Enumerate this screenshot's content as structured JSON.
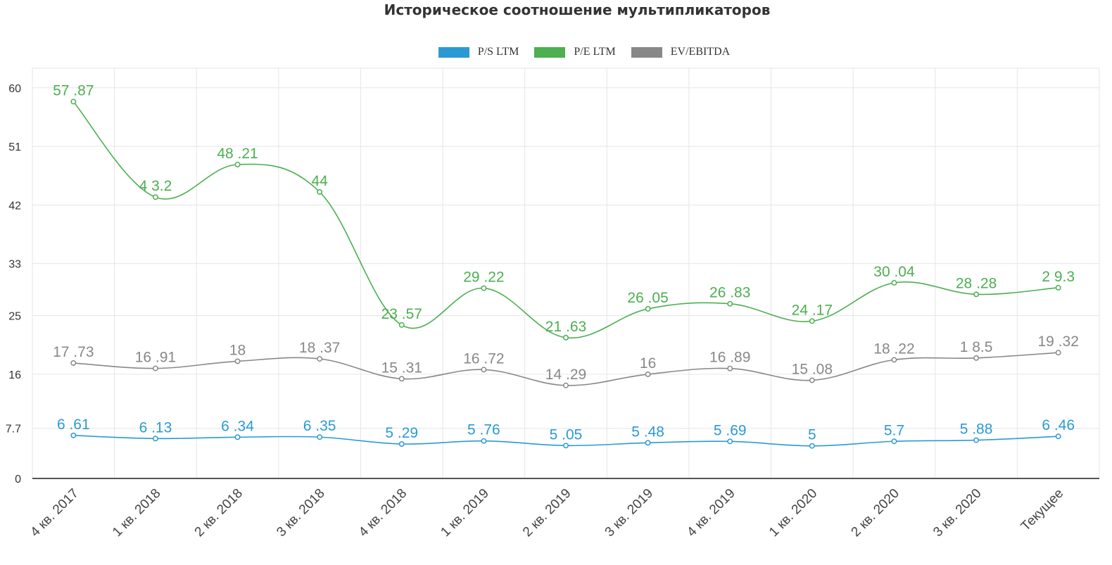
{
  "chart_data": {
    "type": "line",
    "title": "Историческое соотношение мультипликаторов",
    "xlabel": "",
    "ylabel": "",
    "categories": [
      "4 кв. 2017",
      "1 кв. 2018",
      "2 кв. 2018",
      "3 кв. 2018",
      "4 кв. 2018",
      "1 кв. 2019",
      "2 кв. 2019",
      "3 кв. 2019",
      "4 кв. 2019",
      "1 кв. 2020",
      "2 кв. 2020",
      "3 кв. 2020",
      "Текущее"
    ],
    "ylim": [
      0,
      63
    ],
    "yticks": [
      "0",
      "7.7",
      "16",
      "25",
      "33",
      "42",
      "51",
      "60"
    ],
    "ytick_values": [
      0,
      7.7,
      16,
      25,
      33,
      42,
      51,
      60
    ],
    "grid": true,
    "legend_position": "top-center",
    "series": [
      {
        "name": "P/S LTM",
        "color": "#2b9ad4",
        "values": [
          6.61,
          6.13,
          6.34,
          6.35,
          5.29,
          5.76,
          5.05,
          5.48,
          5.69,
          5,
          5.7,
          5.88,
          6.46
        ],
        "labels": [
          "6 .61",
          "6 .13",
          "6 .34",
          "6 .35",
          "5 .29",
          "5 .76",
          "5 .05",
          "5 .48",
          "5 .69",
          "5",
          "5.7",
          "5 .88",
          "6 .46"
        ]
      },
      {
        "name": "P/E LTM",
        "color": "#4caf50",
        "values": [
          57.87,
          43.2,
          48.21,
          44,
          23.57,
          29.22,
          21.63,
          26.05,
          26.83,
          24.17,
          30.04,
          28.28,
          29.3
        ],
        "labels": [
          "57 .87",
          "4 3.2",
          "48 .21",
          "44",
          "23 .57",
          "29 .22",
          "21 .63",
          "26 .05",
          "26 .83",
          "24 .17",
          "30 .04",
          "28 .28",
          "2 9.3"
        ]
      },
      {
        "name": "EV/EBITDA",
        "color": "#888888",
        "values": [
          17.73,
          16.91,
          18,
          18.37,
          15.31,
          16.72,
          14.29,
          16,
          16.89,
          15.08,
          18.22,
          18.5,
          19.32
        ],
        "labels": [
          "17 .73",
          "16 .91",
          "18",
          "18 .37",
          "15 .31",
          "16 .72",
          "14 .29",
          "16",
          "16 .89",
          "15 .08",
          "18 .22",
          "1 8.5",
          "19 .32"
        ]
      }
    ]
  }
}
